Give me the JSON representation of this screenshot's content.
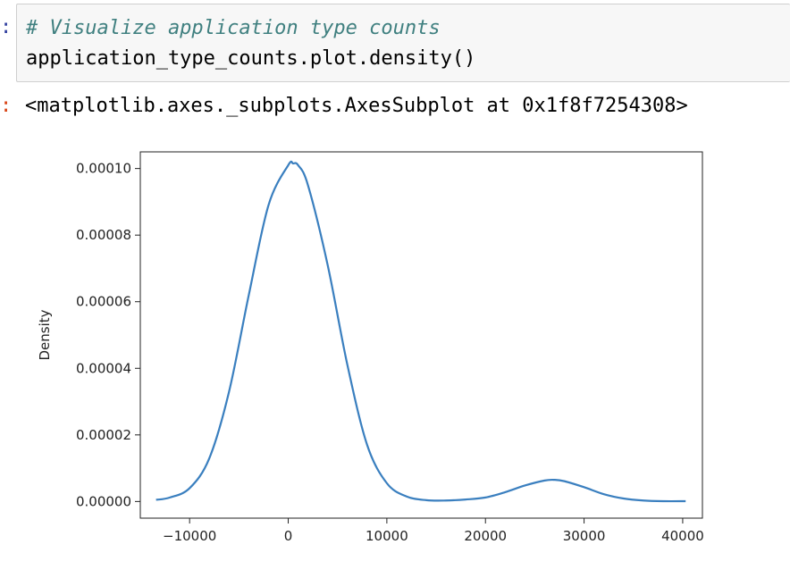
{
  "cell": {
    "in_prompt": ":",
    "out_prompt": ":",
    "code_comment": "# Visualize application type counts",
    "code_line": "application_type_counts.plot.density()",
    "output_text": "<matplotlib.axes._subplots.AxesSubplot at 0x1f8f7254308>"
  },
  "chart_data": {
    "type": "line",
    "title": "",
    "xlabel": "",
    "ylabel": "Density",
    "xlim": [
      -15000,
      42000
    ],
    "ylim": [
      -5e-06,
      0.000105
    ],
    "xticks": [
      -10000,
      0,
      10000,
      20000,
      30000,
      40000
    ],
    "xtick_labels": [
      "−10000",
      "0",
      "10000",
      "20000",
      "30000",
      "40000"
    ],
    "yticks": [
      0,
      2e-05,
      4e-05,
      6e-05,
      8e-05,
      0.0001
    ],
    "ytick_labels": [
      "0.00000",
      "0.00002",
      "0.00004",
      "0.00006",
      "0.00008",
      "0.00010"
    ],
    "grid": false,
    "line_color": "#3a7fbf",
    "series": [
      {
        "x": [
          -13400,
          -12000,
          -10000,
          -8000,
          -6000,
          -4000,
          -2000,
          0,
          500,
          1000,
          2000,
          4000,
          6000,
          8000,
          10000,
          12000,
          14000,
          16000,
          18000,
          20000,
          22000,
          24000,
          26000,
          27000,
          28000,
          30000,
          32000,
          34000,
          36000,
          38000,
          40300
        ],
        "y": [
          5e-07,
          1.2e-06,
          4e-06,
          1.3e-05,
          3.3e-05,
          6.2e-05,
          8.9e-05,
          0.000101,
          0.0001015,
          0.000101,
          9.5e-05,
          7.1e-05,
          4.1e-05,
          1.7e-05,
          5.5e-06,
          1.5e-06,
          4e-07,
          3e-07,
          6e-07,
          1.2e-06,
          2.8e-06,
          4.8e-06,
          6.3e-06,
          6.5e-06,
          6.1e-06,
          4.3e-06,
          2.2e-06,
          9e-07,
          3e-07,
          1e-07,
          1e-07
        ]
      }
    ]
  }
}
